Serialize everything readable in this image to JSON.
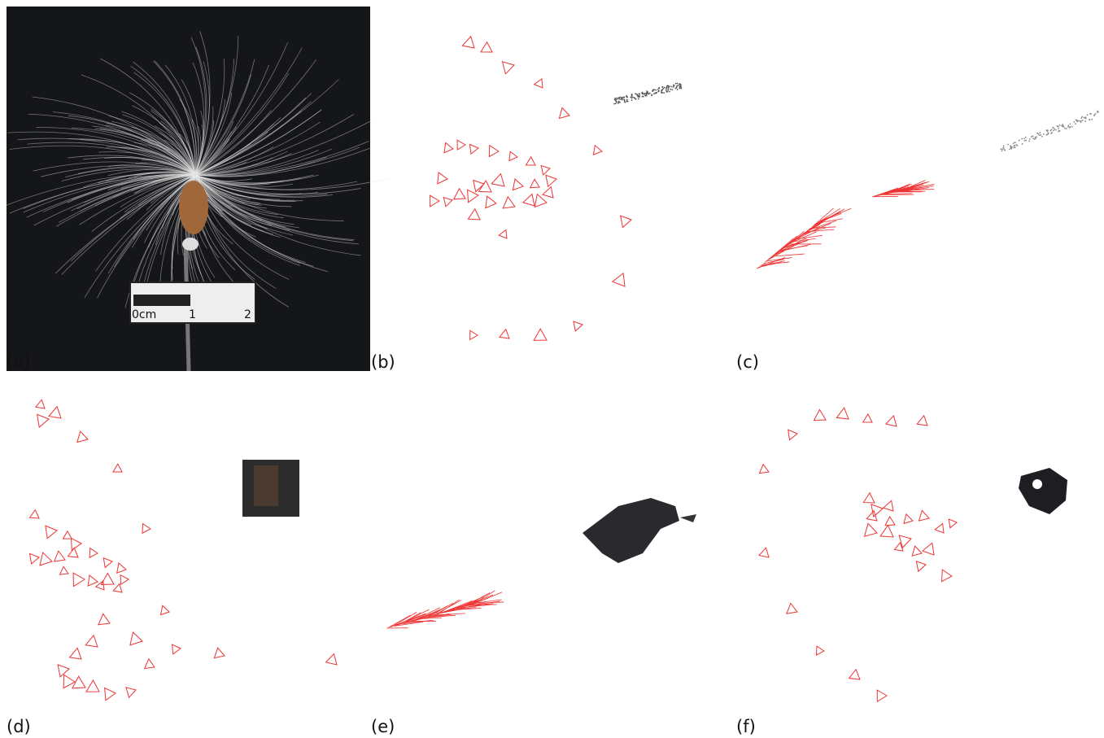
{
  "panels": [
    {
      "label": "(a)"
    },
    {
      "label": "(b)"
    },
    {
      "label": "(c)"
    },
    {
      "label": "(d)"
    },
    {
      "label": "(e)"
    },
    {
      "label": "(f)"
    }
  ],
  "scale_bar": {
    "labels": [
      "0cm",
      "1",
      "2"
    ]
  }
}
